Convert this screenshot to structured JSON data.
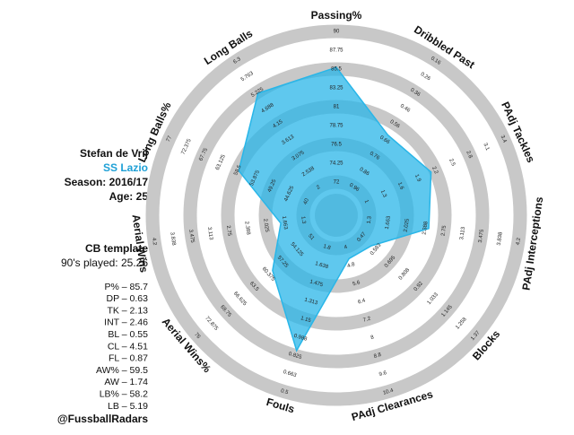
{
  "chart_data": {
    "type": "radar",
    "categories": [
      "Passing%",
      "Dribbled Past",
      "PAdj Tackles",
      "PAdj Interceptions",
      "Blocks",
      "PAdj Clearances",
      "Fouls",
      "Aerial Wins%",
      "Aerial Wins",
      "Long Balls%",
      "Long Balls"
    ],
    "values": [
      85.7,
      0.63,
      2.13,
      2.46,
      0.55,
      4.51,
      0.87,
      59.5,
      1.74,
      58.2,
      5.19
    ],
    "color": "#29b6e8",
    "axis_ticks": [
      [
        72,
        74.25,
        76.5,
        78.75,
        81,
        83.25,
        85.5,
        87.75,
        90
      ],
      [
        0.96,
        0.86,
        0.76,
        0.66,
        0.56,
        0.46,
        0.36,
        0.26,
        0.16
      ],
      [
        1,
        1.3,
        1.6,
        1.9,
        2.2,
        2.5,
        2.8,
        3.1,
        3.4
      ],
      [
        1.3,
        1.663,
        2.025,
        2.388,
        2.75,
        3.113,
        3.475,
        3.838,
        4.2
      ],
      [
        0.47,
        0.583,
        0.695,
        0.808,
        0.92,
        1.033,
        1.145,
        1.258,
        1.37
      ],
      [
        4,
        4.8,
        5.6,
        6.4,
        7.2,
        8,
        8.8,
        9.6,
        10.4
      ],
      [
        1.8,
        1.638,
        1.475,
        1.313,
        1.15,
        0.988,
        0.825,
        0.663,
        0.5
      ],
      [
        51,
        54.125,
        57.25,
        60.375,
        63.5,
        66.625,
        69.75,
        72.875,
        76
      ],
      [
        1.3,
        1.663,
        2.025,
        2.388,
        2.75,
        3.113,
        3.475,
        3.838,
        4.2
      ],
      [
        40,
        44.625,
        49.25,
        53.875,
        58.5,
        63.125,
        67.75,
        72.375,
        77
      ],
      [
        2,
        2.538,
        3.075,
        3.613,
        4.15,
        4.688,
        5.225,
        5.763,
        6.3
      ]
    ]
  },
  "player": {
    "name": "Stefan de Vrij",
    "team": "SS Lazio",
    "season": "Season: 2016/17",
    "age": "Age: 25",
    "template": "CB template",
    "played": "90's played: 25.26",
    "stats": [
      "P% – 85.7",
      "DP – 0.63",
      "TK – 2.13",
      "INT – 2.46",
      "BL – 0.55",
      "CL – 4.51",
      "FL – 0.87",
      "AW% – 59.5",
      "AW – 1.74",
      "LB% – 58.2",
      "LB – 5.19"
    ],
    "credit": "@FussballRadars"
  }
}
